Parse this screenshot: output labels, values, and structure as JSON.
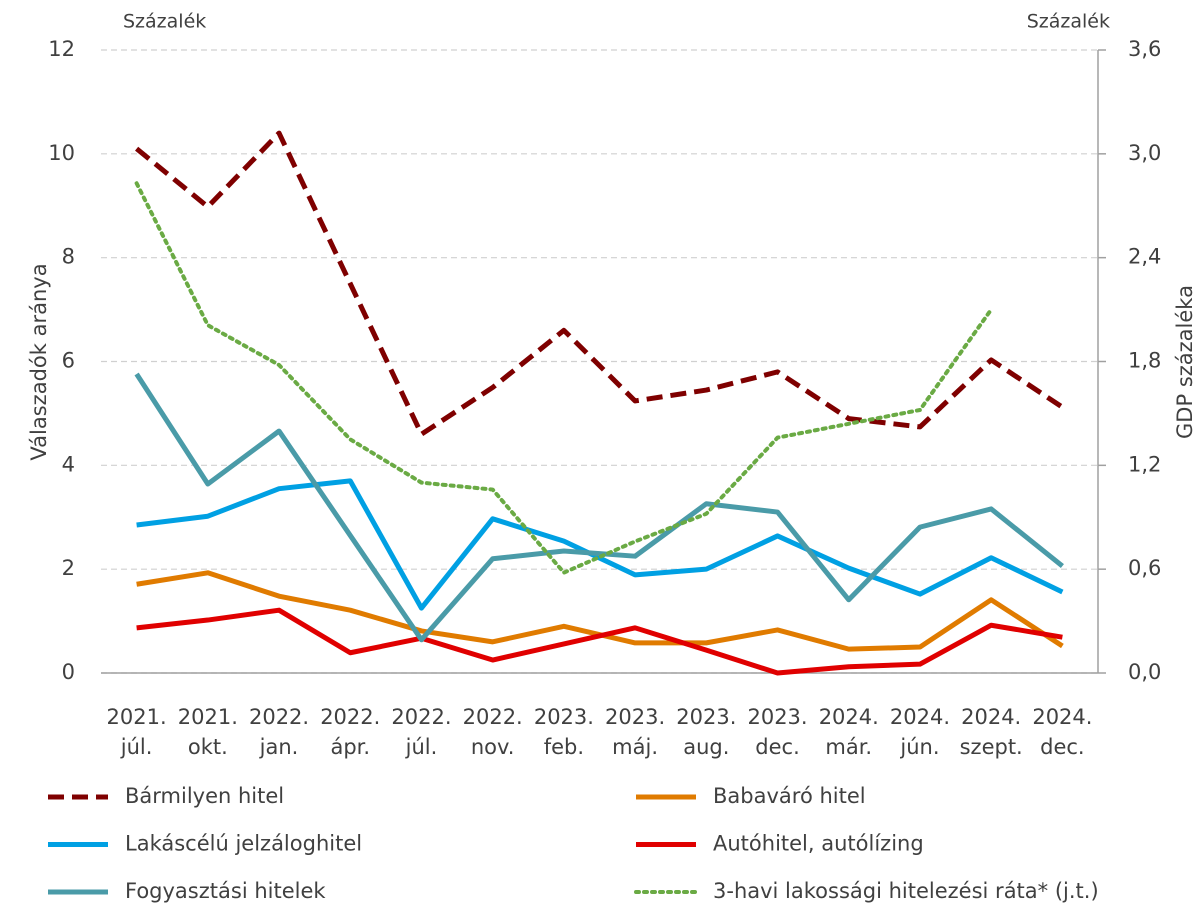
{
  "chart_data": {
    "type": "line",
    "y_unit_left": "Százalék",
    "y_unit_right": "Százalék",
    "ylabel": "Válaszadók aránya",
    "y2label": "GDP százaléka",
    "categories": [
      [
        "2021.",
        "júl."
      ],
      [
        "2021.",
        "okt."
      ],
      [
        "2022.",
        "jan."
      ],
      [
        "2022.",
        "ápr."
      ],
      [
        "2022.",
        "júl."
      ],
      [
        "2022.",
        "nov."
      ],
      [
        "2023.",
        "feb."
      ],
      [
        "2023.",
        "máj."
      ],
      [
        "2023.",
        "aug."
      ],
      [
        "2023.",
        "dec."
      ],
      [
        "2024.",
        "már."
      ],
      [
        "2024.",
        "jún."
      ],
      [
        "2024.",
        "szept."
      ],
      [
        "2024.",
        "dec."
      ]
    ],
    "ylim": [
      0,
      12
    ],
    "yticks": [
      0,
      2,
      4,
      6,
      8,
      10,
      12
    ],
    "y2lim": [
      0,
      3.6
    ],
    "y2ticks": [
      {
        "value": 0,
        "label": "0,0"
      },
      {
        "value": 0.6,
        "label": "0,6"
      },
      {
        "value": 1.2,
        "label": "1,2"
      },
      {
        "value": 1.8,
        "label": "1,8"
      },
      {
        "value": 2.4,
        "label": "2,4"
      },
      {
        "value": 3.0,
        "label": "3,0"
      },
      {
        "value": 3.6,
        "label": "3,6"
      }
    ],
    "grid": true,
    "series": [
      {
        "name": "Bármilyen hitel",
        "color": "#7f0000",
        "style": "dashed",
        "values": [
          10.1,
          8.98,
          10.4,
          7.5,
          4.6,
          5.5,
          6.6,
          5.24,
          5.45,
          5.8,
          4.9,
          4.74,
          6.03,
          5.12
        ]
      },
      {
        "name": "Babaváró hitel",
        "color": "#e07b00",
        "style": "solid",
        "values": [
          1.71,
          1.93,
          1.48,
          1.21,
          0.81,
          0.6,
          0.9,
          0.58,
          0.58,
          0.83,
          0.46,
          0.5,
          1.41,
          0.52
        ]
      },
      {
        "name": "Lakáscélú jelzáloghitel",
        "color": "#00a0e3",
        "style": "solid",
        "values": [
          2.85,
          3.02,
          3.55,
          3.7,
          1.25,
          2.97,
          2.54,
          1.89,
          2.0,
          2.64,
          2.02,
          1.52,
          2.22,
          1.56
        ]
      },
      {
        "name": "Autóhitel, autólízing",
        "color": "#e00000",
        "style": "solid",
        "values": [
          0.87,
          1.02,
          1.21,
          0.39,
          0.67,
          0.25,
          0.56,
          0.87,
          0.44,
          0,
          0.12,
          0.17,
          0.92,
          0.69
        ]
      },
      {
        "name": "Fogyasztási hitelek",
        "color": "#4a9ba8",
        "style": "solid",
        "values": [
          5.76,
          3.64,
          4.66,
          2.65,
          0.64,
          2.2,
          2.35,
          2.25,
          3.26,
          3.1,
          1.41,
          2.81,
          3.16,
          2.06
        ]
      },
      {
        "name": "3-havi lakossági hitelezési ráta* (j.t.)",
        "color": "#6aaa44",
        "style": "dotted",
        "axis": "y2",
        "values": [
          2.83,
          2.01,
          1.78,
          1.35,
          1.1,
          1.06,
          0.58,
          0.76,
          0.92,
          1.36,
          1.44,
          1.52,
          2.1,
          null
        ]
      }
    ]
  }
}
